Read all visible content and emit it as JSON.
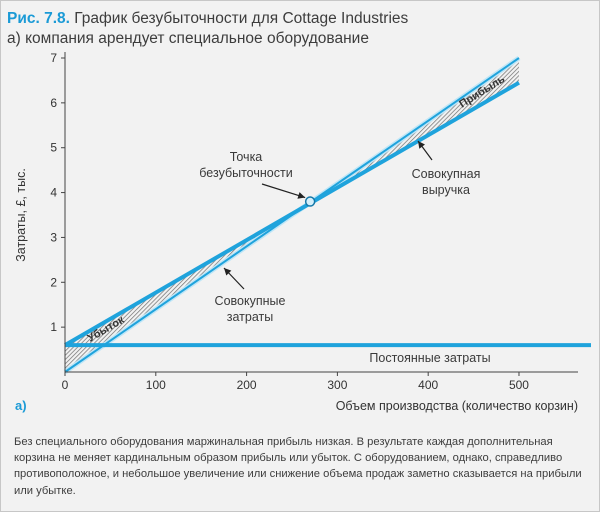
{
  "header": {
    "figure_label": "Рис. 7.8.",
    "title": "График безубыточности для Cottage Industries",
    "subtitle": "а) компания арендует специальное оборудование"
  },
  "sub_label": "а)",
  "caption": "Без специального оборудования маржинальная прибыль низкая. В результате каждая дополнительная корзина не меняет кардинальным образом прибыль или убыток. С оборудованием, однако, справедливо противоположное, и небольшое увеличение или снижение объема продаж заметно сказывается на прибыли или убытке.",
  "colors": {
    "line": "#1fa3dc",
    "hatch": "#7a7a7a",
    "axis": "#444444",
    "background": "#f2f2f2"
  },
  "chart_data": {
    "type": "line",
    "title": "График безубыточности для Cottage Industries",
    "xlabel": "Объем производства (количество корзин)",
    "ylabel": "Затраты, £, тыс.",
    "xlim": [
      0,
      565
    ],
    "ylim": [
      0,
      7
    ],
    "x_ticks": [
      0,
      100,
      200,
      300,
      400,
      500
    ],
    "y_ticks": [
      1,
      2,
      3,
      4,
      5,
      6,
      7
    ],
    "series": [
      {
        "name": "Совокупная выручка",
        "x": [
          0,
          500
        ],
        "values": [
          0,
          7.0
        ]
      },
      {
        "name": "Совокупные затраты",
        "x": [
          0,
          500
        ],
        "values": [
          0.6,
          6.45
        ]
      },
      {
        "name": "Постоянные затраты",
        "x": [
          0,
          565
        ],
        "values": [
          0.6,
          0.6
        ]
      }
    ],
    "break_even": {
      "x": 270,
      "y": 3.8
    },
    "annotations": {
      "break_even": [
        "Точка",
        "безубыточности"
      ],
      "revenue": [
        "Совокупная",
        "выручка"
      ],
      "total_cost": [
        "Совокупные",
        "затраты"
      ],
      "fixed_cost": "Постоянные затраты",
      "profit": "Прибыль",
      "loss": "Убыток"
    }
  }
}
